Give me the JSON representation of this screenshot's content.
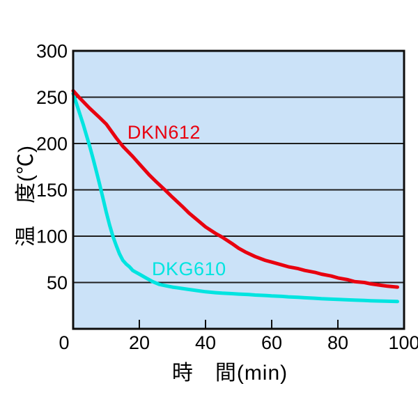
{
  "chart_data": {
    "type": "line",
    "title": "",
    "xlabel": "時　間(min)",
    "ylabel": "温　度(℃)",
    "xlim": [
      0,
      100
    ],
    "ylim": [
      0,
      300
    ],
    "x_ticks": [
      0,
      20,
      40,
      60,
      80,
      100
    ],
    "y_ticks": [
      50,
      100,
      150,
      200,
      250,
      300
    ],
    "grid": "horizontal-only",
    "legend_position": "inline-annotations",
    "plot_bg_color": "#cbe2f8",
    "grid_color": "#1f1f1f",
    "axis_color": "#0d0d0d",
    "series": [
      {
        "name": "DKG610",
        "color": "#00e4e0",
        "label_pos": {
          "x": 23.8,
          "y": 76
        },
        "points": [
          [
            0,
            254
          ],
          [
            1,
            243
          ],
          [
            2,
            232
          ],
          [
            3,
            221
          ],
          [
            4,
            209
          ],
          [
            5,
            197
          ],
          [
            6,
            184
          ],
          [
            7,
            170
          ],
          [
            8,
            156
          ],
          [
            9,
            141
          ],
          [
            10,
            126
          ],
          [
            11,
            112
          ],
          [
            12,
            100
          ],
          [
            13,
            90
          ],
          [
            14,
            81
          ],
          [
            15,
            74
          ],
          [
            16,
            70
          ],
          [
            17,
            67
          ],
          [
            18,
            63
          ],
          [
            19,
            61
          ],
          [
            20,
            59
          ],
          [
            22,
            55
          ],
          [
            24,
            51
          ],
          [
            26,
            48
          ],
          [
            28,
            46.5
          ],
          [
            30,
            45
          ],
          [
            33,
            43.5
          ],
          [
            35,
            42.5
          ],
          [
            38,
            41
          ],
          [
            40,
            40
          ],
          [
            43,
            39
          ],
          [
            45,
            38.5
          ],
          [
            48,
            38
          ],
          [
            50,
            37.5
          ],
          [
            53,
            37
          ],
          [
            55,
            36.5
          ],
          [
            58,
            36
          ],
          [
            60,
            35.5
          ],
          [
            63,
            35
          ],
          [
            65,
            34.5
          ],
          [
            68,
            34
          ],
          [
            70,
            33.5
          ],
          [
            73,
            33
          ],
          [
            75,
            32.5
          ],
          [
            78,
            32
          ],
          [
            80,
            31.8
          ],
          [
            83,
            31.3
          ],
          [
            85,
            31
          ],
          [
            88,
            30.6
          ],
          [
            90,
            30.3
          ],
          [
            93,
            30
          ],
          [
            95,
            29.8
          ],
          [
            98,
            29.5
          ]
        ]
      },
      {
        "name": "DKN612",
        "color": "#e8000f",
        "label_pos": {
          "x": 16.4,
          "y": 223
        },
        "points": [
          [
            0,
            257
          ],
          [
            2,
            249
          ],
          [
            5,
            238
          ],
          [
            8,
            228
          ],
          [
            10,
            221
          ],
          [
            13,
            206
          ],
          [
            15,
            197
          ],
          [
            18,
            186
          ],
          [
            20,
            178
          ],
          [
            23,
            166
          ],
          [
            25,
            159
          ],
          [
            28,
            149
          ],
          [
            30,
            142
          ],
          [
            33,
            132
          ],
          [
            35,
            125
          ],
          [
            38,
            116
          ],
          [
            40,
            110
          ],
          [
            43,
            103
          ],
          [
            45,
            99
          ],
          [
            48,
            92
          ],
          [
            50,
            87
          ],
          [
            52,
            83
          ],
          [
            55,
            78
          ],
          [
            58,
            74
          ],
          [
            60,
            72
          ],
          [
            63,
            69
          ],
          [
            65,
            67
          ],
          [
            68,
            65
          ],
          [
            70,
            63
          ],
          [
            73,
            61
          ],
          [
            75,
            59
          ],
          [
            78,
            57
          ],
          [
            80,
            55
          ],
          [
            83,
            53
          ],
          [
            85,
            51
          ],
          [
            88,
            50
          ],
          [
            90,
            48.5
          ],
          [
            93,
            47
          ],
          [
            95,
            46
          ],
          [
            98,
            45
          ]
        ]
      }
    ]
  }
}
